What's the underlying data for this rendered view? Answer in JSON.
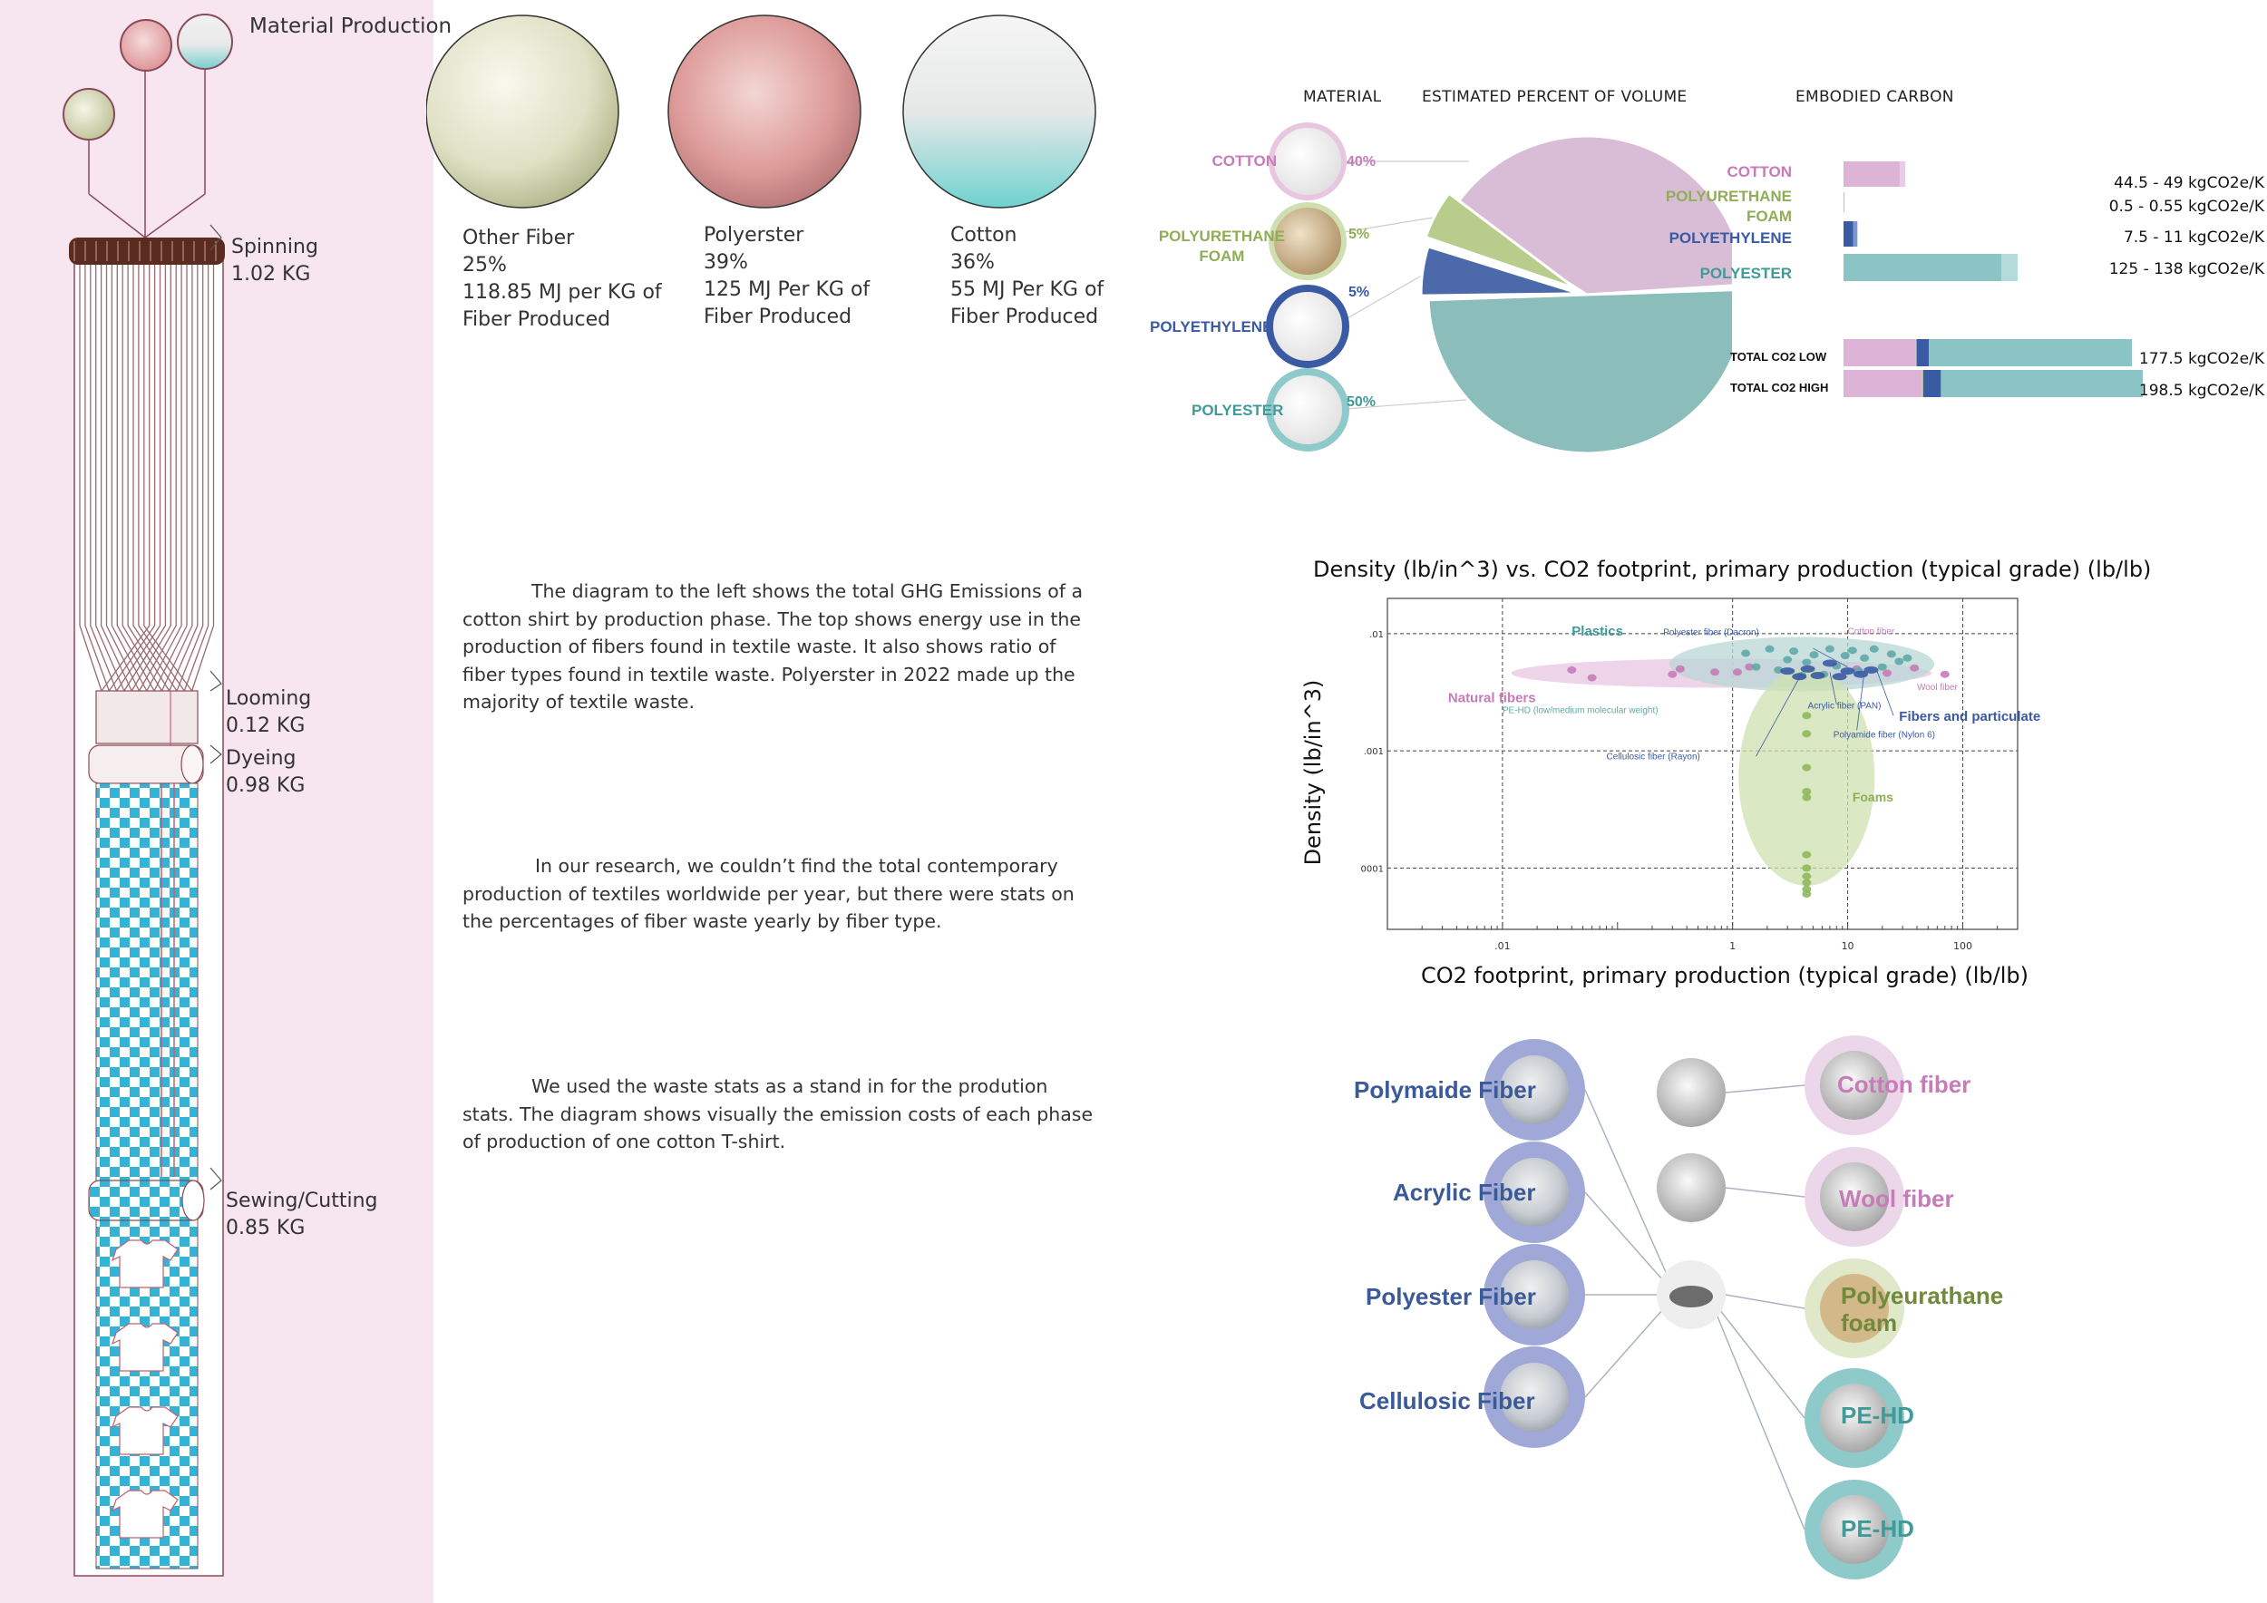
{
  "colors": {
    "pink_bg": "#f7e6ef",
    "cotton": "#c77bb8",
    "foam": "#8fae55",
    "polyethylene": "#3a5aa3",
    "polyester": "#3f9a98",
    "checker": "#35b3d6",
    "brown": "#5a2b1f"
  },
  "production": {
    "title": "Material Production",
    "steps": [
      {
        "name": "Spinning",
        "value": "1.02 KG"
      },
      {
        "name": "Looming",
        "value": "0.12 KG"
      },
      {
        "name": "Dyeing",
        "value": "0.98 KG"
      },
      {
        "name": "Sewing/Cutting",
        "value": "0.85 KG"
      }
    ],
    "shirt_icons": [
      "shirt-icon",
      "shirt-icon",
      "shirt-icon",
      "shirt-icon"
    ]
  },
  "energy": [
    {
      "name": "Other Fiber",
      "share": "25%",
      "energy_line1": "118.85 MJ per KG of",
      "energy_line2": "Fiber Produced"
    },
    {
      "name": "Polyerster",
      "share": "39%",
      "energy_line1": "125 MJ Per KG of",
      "energy_line2": "Fiber Produced"
    },
    {
      "name": "Cotton",
      "share": "36%",
      "energy_line1": "55 MJ Per KG of",
      "energy_line2": "Fiber Produced"
    }
  ],
  "paragraphs": {
    "p1": "The diagram to the left shows the total GHG Emissions of a cotton shirt by production phase. The top shows energy use in the production of fibers found in textile waste. It also shows ratio of fiber types found in textile waste. Polyerster in 2022 made up the majority of textile waste.",
    "p2": "In our research, we couldn’t find the total contemporary production of textiles worldwide per year, but there were stats on the percentages of fiber waste yearly by fiber type.",
    "p3": "We used the waste stats as a stand in for the prodution stats. The diagram shows visually the emission costs of each phase of production of one cotton T-shirt."
  },
  "composition": {
    "headers": {
      "material": "MATERIAL",
      "volume": "ESTIMATED PERCENT OF VOLUME",
      "carbon": "EMBODIED CARBON"
    },
    "materials": [
      {
        "label": "COTTON",
        "percent": "40%"
      },
      {
        "label": "POLYURETHANE FOAM",
        "label_line1": "POLYURETHANE",
        "label_line2": "FOAM",
        "percent": "5%"
      },
      {
        "label": "POLYETHYLENE",
        "percent": "5%"
      },
      {
        "label": "POLYESTER",
        "percent": "50%"
      }
    ],
    "carbon": [
      {
        "label": "COTTON",
        "low": 44.5,
        "high": 49,
        "range": "44.5 - 49 kgCO2e/K"
      },
      {
        "label": "POLYURETHANE FOAM",
        "label_line1": "POLYURETHANE",
        "label_line2": "FOAM",
        "low": 0.5,
        "high": 0.55,
        "range": "0.5 - 0.55 kgCO2e/K"
      },
      {
        "label": "POLYETHYLENE",
        "low": 7.5,
        "high": 11,
        "range": "7.5 - 11 kgCO2e/K"
      },
      {
        "label": "POLYESTER",
        "low": 125,
        "high": 138,
        "range": "125 - 138 kgCO2e/K"
      }
    ],
    "totals": [
      {
        "label": "TOTAL CO2 LOW",
        "value": 177.5,
        "range": "177.5 kgCO2e/K"
      },
      {
        "label": "TOTAL CO2 HIGH",
        "value": 198.5,
        "range": "198.5 kgCO2e/K"
      }
    ]
  },
  "chart_data": {
    "type": "scatter",
    "title": "Density (lb/in^3) vs. CO2 footprint, primary production (typical grade) (lb/lb)",
    "xlabel": "CO2 footprint, primary production (typical grade) (lb/lb)",
    "ylabel": "Density (lb/in^3)",
    "xscale": "log",
    "yscale": "log",
    "xlim": [
      0.001,
      300
    ],
    "ylim": [
      3e-05,
      0.02
    ],
    "xticks": [
      {
        "v": 0.01,
        "label": ".01"
      },
      {
        "v": 1,
        "label": "1"
      },
      {
        "v": 10,
        "label": "10"
      },
      {
        "v": 100,
        "label": "100"
      }
    ],
    "yticks": [
      {
        "v": 0.01,
        "label": ".01"
      },
      {
        "v": 0.001,
        "label": ".001"
      },
      {
        "v": 0.0001,
        "label": ".0001"
      }
    ],
    "grid": true,
    "groups": [
      {
        "name": "Plastics",
        "color": "#3f9a98",
        "x_range": [
          0.5,
          60
        ],
        "y_center": 0.0045
      },
      {
        "name": "Natural fibers",
        "color": "#c77bb8",
        "x_range": [
          0.02,
          90
        ],
        "y_center": 0.0045
      },
      {
        "name": "Fibers and particulates",
        "color": "#3a5aa3",
        "x_range": [
          3,
          25
        ],
        "y_center": 0.0047
      },
      {
        "name": "Foams",
        "color": "#9cbf6e",
        "x_range": [
          2,
          12
        ],
        "y_center": 0.0006
      }
    ],
    "annotations": [
      "Polyester fiber (Dacron)",
      "Cotton fiber",
      "Wool fiber",
      "PE-HD (low/medium molecular weight)",
      "Acrylic fiber (PAN)",
      "Polyamide fiber (Nylon 6)",
      "Cellulosic fiber (Rayon)"
    ],
    "series": [
      {
        "name": "Natural fibers",
        "points": [
          [
            0.04,
            0.0049
          ],
          [
            0.06,
            0.0042
          ],
          [
            0.3,
            0.0045
          ],
          [
            0.35,
            0.005
          ],
          [
            0.7,
            0.0047
          ],
          [
            1.1,
            0.0047
          ],
          [
            1.4,
            0.0052
          ],
          [
            12,
            0.005
          ],
          [
            22,
            0.0046
          ],
          [
            38,
            0.0051
          ],
          [
            70,
            0.0045
          ]
        ]
      },
      {
        "name": "Plastics",
        "points": [
          [
            1.3,
            0.0068
          ],
          [
            1.6,
            0.0052
          ],
          [
            2.1,
            0.0074
          ],
          [
            2.5,
            0.0049
          ],
          [
            3,
            0.006
          ],
          [
            3.4,
            0.0071
          ],
          [
            4,
            0.0044
          ],
          [
            4.4,
            0.0057
          ],
          [
            5.1,
            0.0066
          ],
          [
            6.2,
            0.0045
          ],
          [
            7,
            0.0074
          ],
          [
            8,
            0.0053
          ],
          [
            9.5,
            0.0065
          ],
          [
            11,
            0.0072
          ],
          [
            12.5,
            0.0048
          ],
          [
            14,
            0.0062
          ],
          [
            17,
            0.0074
          ],
          [
            20,
            0.0052
          ],
          [
            24,
            0.0067
          ],
          [
            28,
            0.0058
          ],
          [
            33,
            0.0062
          ]
        ]
      },
      {
        "name": "Fibers and particulates",
        "points": [
          [
            3,
            0.0048
          ],
          [
            3.8,
            0.0043
          ],
          [
            4.5,
            0.005
          ],
          [
            5.5,
            0.0044
          ],
          [
            7,
            0.0056
          ],
          [
            8.5,
            0.0043
          ],
          [
            10,
            0.0048
          ],
          [
            13,
            0.0045
          ],
          [
            16,
            0.0049
          ]
        ]
      },
      {
        "name": "Foams",
        "points": [
          [
            4.4,
            0.002
          ],
          [
            4.4,
            0.0014
          ],
          [
            4.4,
            0.00072
          ],
          [
            4.4,
            0.00045
          ],
          [
            4.4,
            0.0004
          ],
          [
            4.4,
            0.00013
          ],
          [
            4.4,
            0.0001
          ],
          [
            4.4,
            8.5e-05
          ],
          [
            4.4,
            7.5e-05
          ],
          [
            4.4,
            6.6e-05
          ],
          [
            4.4,
            6e-05
          ]
        ]
      }
    ]
  },
  "fibers": {
    "left": [
      "Polymaide Fiber",
      "Acrylic Fiber",
      "Polyester Fiber",
      "Cellulosic Fiber"
    ],
    "right": [
      "Cotton fiber",
      "Wool fiber",
      "Polyeurathane foam",
      "PE-HD",
      "PE-HD"
    ]
  }
}
